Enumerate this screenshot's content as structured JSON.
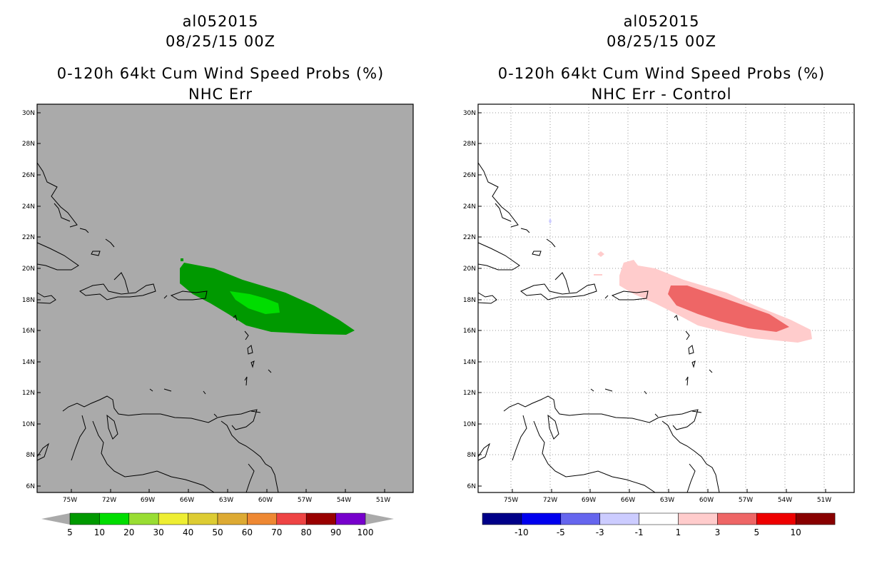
{
  "left_panel": {
    "storm_id": "al052015",
    "datetime": "08/25/15 00Z",
    "product": "0-120h 64kt Cum Wind Speed Probs (%)",
    "subtitle": "NHC Err",
    "background_color": "#aaaaaa",
    "lat_labels": [
      "30N",
      "28N",
      "26N",
      "24N",
      "22N",
      "20N",
      "18N",
      "16N",
      "14N",
      "12N",
      "10N",
      "8N",
      "6N"
    ],
    "lon_labels": [
      "75W",
      "72W",
      "69W",
      "66W",
      "63W",
      "60W",
      "57W",
      "54W",
      "51W"
    ],
    "colorbar": {
      "colors": [
        "#009900",
        "#00dd00",
        "#99dd33",
        "#eeee33",
        "#ddcc33",
        "#ddaa33",
        "#ee8833",
        "#ee4444",
        "#990000",
        "#7700cc"
      ],
      "labels": [
        "5",
        "10",
        "20",
        "30",
        "40",
        "50",
        "60",
        "70",
        "80",
        "90",
        "100"
      ]
    }
  },
  "right_panel": {
    "storm_id": "al052015",
    "datetime": "08/25/15 00Z",
    "product": "0-120h 64kt Cum Wind Speed Probs (%)",
    "subtitle": "NHC Err - Control",
    "background_color": "#ffffff",
    "lat_labels": [
      "30N",
      "28N",
      "26N",
      "24N",
      "22N",
      "20N",
      "18N",
      "16N",
      "14N",
      "12N",
      "10N",
      "8N",
      "6N"
    ],
    "lon_labels": [
      "75W",
      "72W",
      "69W",
      "66W",
      "63W",
      "60W",
      "57W",
      "54W",
      "51W"
    ],
    "colorbar": {
      "colors": [
        "#000088",
        "#0000ee",
        "#6666ee",
        "#ccccff",
        "#ffffff",
        "#ffcccc",
        "#ee6666",
        "#ee0000",
        "#880000"
      ],
      "labels": [
        "-10",
        "-5",
        "-3",
        "-1",
        "1",
        "3",
        "5",
        "10"
      ]
    }
  }
}
